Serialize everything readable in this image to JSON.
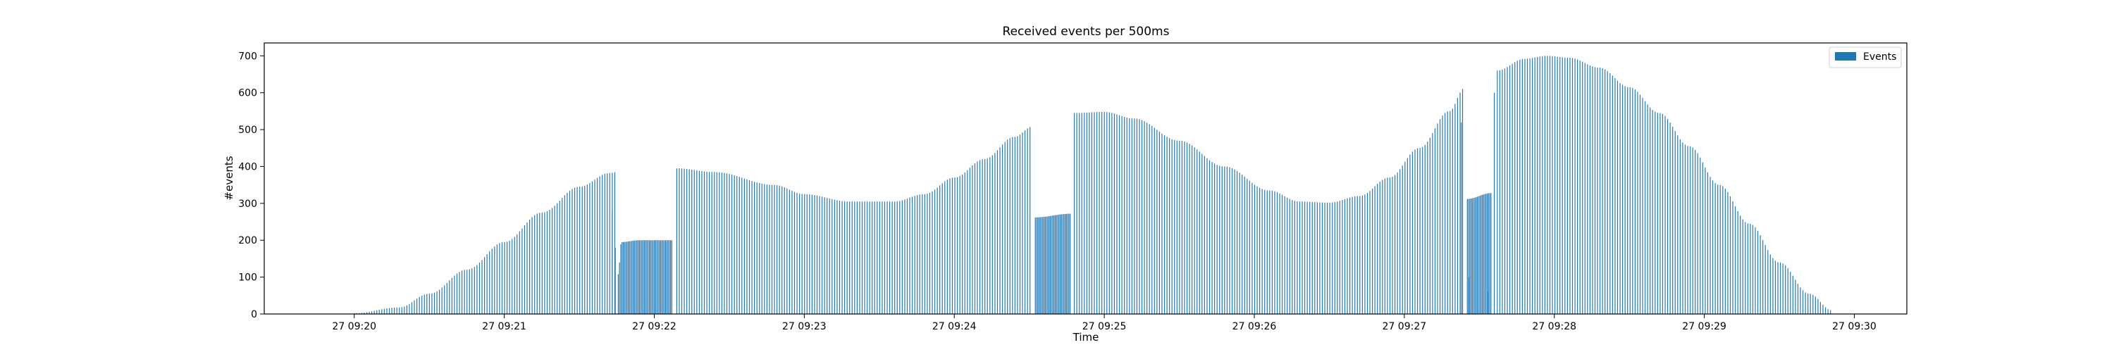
{
  "chart_data": {
    "type": "bar",
    "title": "Received events per 500ms",
    "xlabel": "Time",
    "ylabel": "#events",
    "x_tick_labels": [
      "27 09:20",
      "27 09:21",
      "27 09:22",
      "27 09:23",
      "27 09:24",
      "27 09:25",
      "27 09:26",
      "27 09:27",
      "27 09:28",
      "27 09:29",
      "27 09:30"
    ],
    "y_ticks": [
      0,
      100,
      200,
      300,
      400,
      500,
      600,
      700
    ],
    "ylim": [
      0,
      735
    ],
    "xlim_minutes": [
      -0.6,
      10.35
    ],
    "legend": {
      "label": "Events",
      "position": "top-right"
    },
    "grid": false,
    "bar_color": "#1f77b4",
    "bar_width_minutes": 0.0055,
    "series": [
      {
        "name": "Events",
        "segments": [
          {
            "kind": "curve",
            "x_start": 0.0,
            "x_end": 1.75,
            "step": 0.0167,
            "points": [
              [
                0.0,
                2
              ],
              [
                0.3,
                18
              ],
              [
                0.5,
                55
              ],
              [
                0.75,
                120
              ],
              [
                1.0,
                195
              ],
              [
                1.25,
                275
              ],
              [
                1.5,
                345
              ],
              [
                1.7,
                382
              ],
              [
                1.75,
                385
              ]
            ]
          },
          {
            "kind": "dense",
            "x_start": 1.76,
            "x_end": 2.12,
            "step": 0.0083,
            "points": [
              [
                1.76,
                108
              ],
              [
                1.78,
                195
              ],
              [
                1.9,
                200
              ],
              [
                2.12,
                200
              ]
            ]
          },
          {
            "kind": "curve",
            "x_start": 2.15,
            "x_end": 4.52,
            "step": 0.0167,
            "points": [
              [
                2.15,
                395
              ],
              [
                2.4,
                385
              ],
              [
                2.8,
                350
              ],
              [
                3.0,
                325
              ],
              [
                3.3,
                305
              ],
              [
                3.6,
                305
              ],
              [
                3.8,
                325
              ],
              [
                4.0,
                370
              ],
              [
                4.2,
                420
              ],
              [
                4.4,
                480
              ],
              [
                4.52,
                508
              ]
            ]
          },
          {
            "kind": "dense",
            "x_start": 4.54,
            "x_end": 4.78,
            "step": 0.0083,
            "points": [
              [
                4.54,
                262
              ],
              [
                4.78,
                272
              ]
            ]
          },
          {
            "kind": "curve",
            "x_start": 4.8,
            "x_end": 7.4,
            "step": 0.0167,
            "points": [
              [
                4.8,
                545
              ],
              [
                5.0,
                548
              ],
              [
                5.2,
                530
              ],
              [
                5.5,
                470
              ],
              [
                5.8,
                400
              ],
              [
                6.1,
                335
              ],
              [
                6.3,
                305
              ],
              [
                6.5,
                302
              ],
              [
                6.7,
                320
              ],
              [
                6.9,
                370
              ],
              [
                7.1,
                450
              ],
              [
                7.3,
                550
              ],
              [
                7.4,
                612
              ]
            ]
          },
          {
            "kind": "dense",
            "x_start": 7.42,
            "x_end": 7.58,
            "step": 0.0083,
            "points": [
              [
                7.42,
                312
              ],
              [
                7.58,
                328
              ]
            ]
          },
          {
            "kind": "curve",
            "x_start": 7.62,
            "x_end": 9.85,
            "step": 0.0167,
            "points": [
              [
                7.62,
                660
              ],
              [
                7.8,
                692
              ],
              [
                7.95,
                700
              ],
              [
                8.1,
                695
              ],
              [
                8.3,
                668
              ],
              [
                8.5,
                615
              ],
              [
                8.7,
                545
              ],
              [
                8.9,
                455
              ],
              [
                9.1,
                350
              ],
              [
                9.3,
                245
              ],
              [
                9.5,
                140
              ],
              [
                9.7,
                55
              ],
              [
                9.85,
                10
              ]
            ]
          }
        ],
        "spikes": [
          [
            1.72,
            280
          ],
          [
            1.74,
            180
          ],
          [
            7.38,
            520
          ],
          [
            7.43,
            100
          ],
          [
            7.56,
            60
          ],
          [
            7.6,
            600
          ]
        ]
      }
    ]
  }
}
